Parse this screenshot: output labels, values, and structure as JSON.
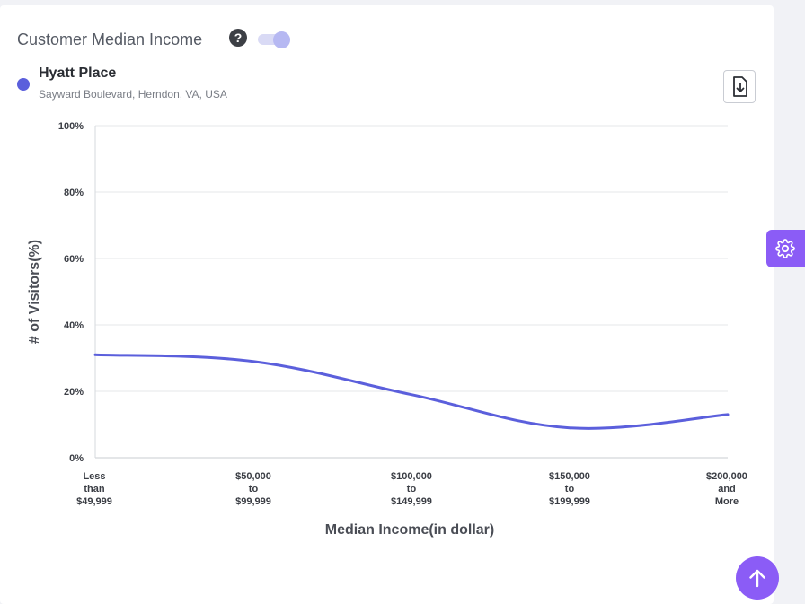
{
  "header": {
    "title": "Customer Median Income",
    "help_icon": "question-circle-icon",
    "toggle_state": "on"
  },
  "legend": {
    "name": "Hyatt Place",
    "address": "Sayward Boulevard, Herndon, VA, USA",
    "color": "#5b5fdc"
  },
  "actions": {
    "download_icon": "download-file-icon",
    "settings_icon": "gear-icon",
    "scroll_top_icon": "arrow-up-icon"
  },
  "chart_data": {
    "type": "line",
    "title": "Customer Median Income",
    "xlabel": "Median Income(in dollar)",
    "ylabel": "# of Visitors(%)",
    "ylim": [
      0,
      100
    ],
    "y_ticks": [
      "0%",
      "20%",
      "40%",
      "60%",
      "80%",
      "100%"
    ],
    "y_tick_values": [
      0,
      20,
      40,
      60,
      80,
      100
    ],
    "categories": [
      [
        "Less",
        "than",
        "$49,999"
      ],
      [
        "$50,000",
        "to",
        "$99,999"
      ],
      [
        "$100,000",
        "to",
        "$149,999"
      ],
      [
        "$150,000",
        "to",
        "$199,999"
      ],
      [
        "$200,000",
        "and",
        "More"
      ]
    ],
    "series": [
      {
        "name": "Hyatt Place",
        "color": "#5b5fdc",
        "values": [
          31,
          29,
          19,
          9,
          13
        ]
      }
    ],
    "grid": true
  }
}
